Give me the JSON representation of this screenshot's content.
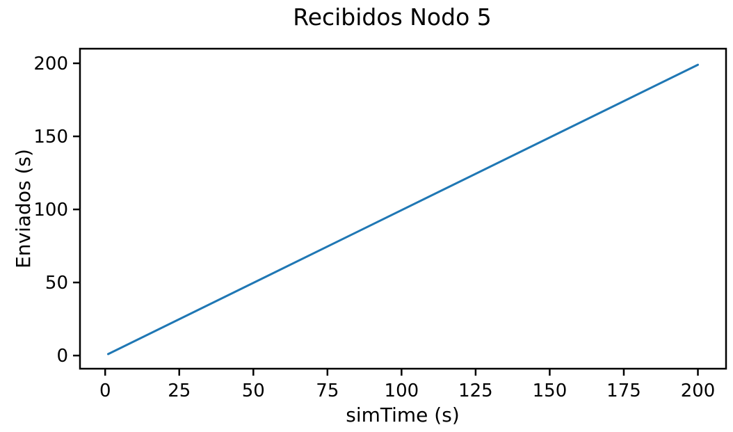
{
  "chart_data": {
    "type": "line",
    "title": "Recibidos Nodo 5",
    "xlabel": "simTime (s)",
    "ylabel": "Enviados (s)",
    "xlim": [
      -8.5,
      209.5
    ],
    "ylim": [
      -9,
      210
    ],
    "xticks": [
      0,
      25,
      50,
      75,
      100,
      125,
      150,
      175,
      200
    ],
    "yticks": [
      0,
      50,
      100,
      150,
      200
    ],
    "grid": false,
    "series": [
      {
        "color": "#1f77b4",
        "x": [
          1,
          200
        ],
        "y": [
          1,
          199
        ]
      }
    ]
  }
}
